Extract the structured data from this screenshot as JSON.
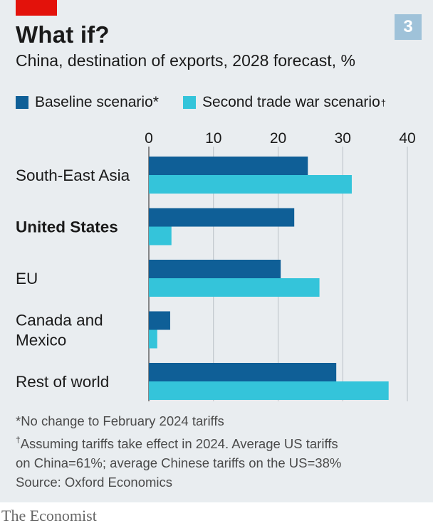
{
  "header": {
    "title": "What if?",
    "badge": "3",
    "subtitle": "China, destination of exports, 2028 forecast, %"
  },
  "legend": [
    {
      "label": "Baseline scenario*",
      "mark": "",
      "color": "#0f5f97"
    },
    {
      "label": "Second trade war scenario",
      "mark": "†",
      "color": "#34c4da"
    }
  ],
  "chart_data": {
    "type": "bar",
    "orientation": "horizontal",
    "categories": [
      "South-East Asia",
      "United States",
      "EU",
      "Canada and Mexico",
      "Rest of world"
    ],
    "highlighted_category": "United States",
    "series": [
      {
        "name": "Baseline scenario",
        "color": "#0f5f97",
        "values": [
          24.6,
          22.5,
          20.4,
          3.3,
          29.0
        ]
      },
      {
        "name": "Second trade war scenario",
        "color": "#34c4da",
        "values": [
          31.4,
          3.5,
          26.4,
          1.3,
          37.1
        ]
      }
    ],
    "xlim": [
      0,
      40
    ],
    "xticks": [
      0,
      10,
      20,
      30,
      40
    ],
    "tick_position": "top",
    "grid": true
  },
  "notes": {
    "baseline_note": "*No change to February 2024 tariffs",
    "dagger_mark": "†",
    "tradewar_note_1": "Assuming tariffs take effect in 2024. Average US tariffs",
    "tradewar_note_2": "on China=61%; average Chinese tariffs on the US=38%",
    "source": "Source: Oxford Economics"
  },
  "brand": "The Economist"
}
